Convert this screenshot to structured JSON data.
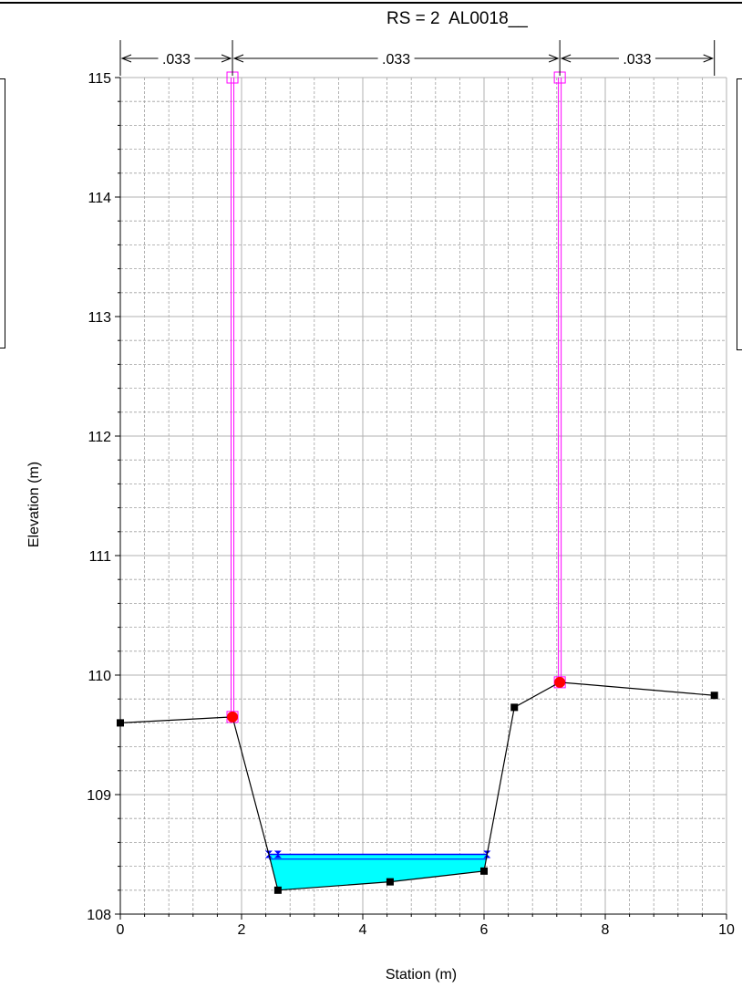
{
  "chart_data": {
    "type": "line",
    "title": "RS = 2  AL0018__",
    "xlabel": "Station (m)",
    "ylabel": "Elevation (m)",
    "xlim": [
      0,
      10
    ],
    "ylim": [
      108,
      115
    ],
    "grid": true,
    "xticks": [
      0,
      2,
      4,
      6,
      8,
      10
    ],
    "yticks": [
      108,
      109,
      110,
      111,
      112,
      113,
      114,
      115
    ],
    "manning_n": [
      ".033",
      ".033",
      ".033"
    ],
    "manning_breaks": [
      0,
      1.85,
      7.25,
      9.8
    ],
    "ground": {
      "x": [
        0,
        1.85,
        2.45,
        2.6,
        4.45,
        6.0,
        6.05,
        6.5,
        7.25,
        9.8
      ],
      "y": [
        109.6,
        109.65,
        108.5,
        108.2,
        108.27,
        108.36,
        108.5,
        109.73,
        109.94,
        109.83
      ]
    },
    "ground_markers": {
      "x": [
        0,
        2.6,
        4.45,
        6.0,
        6.5,
        9.8
      ],
      "y": [
        109.6,
        108.2,
        108.27,
        108.36,
        109.73,
        109.83
      ]
    },
    "bank_stations": [
      {
        "x": 1.85,
        "y": 109.65
      },
      {
        "x": 7.25,
        "y": 109.94
      }
    ],
    "levees": [
      {
        "x": 1.85,
        "y_bottom": 109.65,
        "y_top": 115
      },
      {
        "x": 7.25,
        "y_bottom": 109.94,
        "y_top": 115
      }
    ],
    "water_surface": {
      "elevation": 108.5,
      "x_left": 2.45,
      "x_right": 6.05,
      "elevation2": 108.46
    },
    "colors": {
      "ground": "#000000",
      "levee": "#ff00ff",
      "bank": "#ff0000",
      "water_fill": "#00ffff",
      "water_line": "#0000ff",
      "grid": "#a0a0a0"
    }
  }
}
